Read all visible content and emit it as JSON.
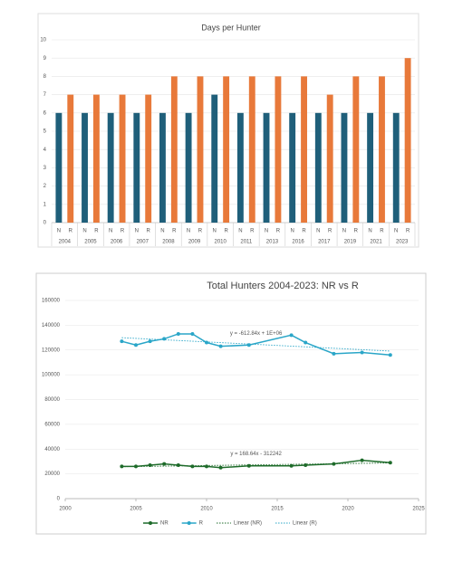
{
  "chart_data": [
    {
      "type": "bar",
      "title": "Days per Hunter",
      "categories": [
        "2004",
        "2005",
        "2006",
        "2007",
        "2008",
        "2009",
        "2010",
        "2011",
        "2013",
        "2016",
        "2017",
        "2019",
        "2021",
        "2023"
      ],
      "series": [
        {
          "name": "N",
          "color": "#1f5f7a",
          "values": [
            6,
            6,
            6,
            6,
            6,
            6,
            7,
            6,
            6,
            6,
            6,
            6,
            6,
            6
          ]
        },
        {
          "name": "R",
          "color": "#e8793a",
          "values": [
            7,
            7,
            7,
            7,
            8,
            8,
            8,
            8,
            8,
            8,
            7,
            8,
            8,
            9
          ]
        }
      ],
      "ylim": [
        0,
        10
      ],
      "yticks": [
        0,
        1,
        2,
        3,
        4,
        5,
        6,
        7,
        8,
        9,
        10
      ],
      "grid": true
    },
    {
      "type": "line",
      "title": "Total Hunters 2004-2023: NR vs R",
      "x": [
        2004,
        2005,
        2006,
        2007,
        2008,
        2009,
        2010,
        2011,
        2013,
        2016,
        2017,
        2019,
        2021,
        2023
      ],
      "series": [
        {
          "name": "NR",
          "color": "#1e6b2a",
          "values": [
            26000,
            26000,
            27000,
            28000,
            27000,
            26000,
            26000,
            25000,
            26500,
            26500,
            27000,
            28000,
            31000,
            29000
          ],
          "trendline": {
            "name": "Linear (NR)",
            "label": "y = 168.64x - 312242"
          }
        },
        {
          "name": "R",
          "color": "#2aa6c8",
          "values": [
            127000,
            124000,
            127000,
            129000,
            133000,
            133000,
            126000,
            123000,
            124000,
            132000,
            126000,
            117000,
            118000,
            116000
          ],
          "trendline": {
            "name": "Linear (R)",
            "label": "y = -612.84x + 1E+06"
          }
        }
      ],
      "xlim": [
        2000,
        2025
      ],
      "xticks": [
        2000,
        2005,
        2010,
        2015,
        2020,
        2025
      ],
      "ylim": [
        0,
        160000
      ],
      "yticks": [
        0,
        20000,
        40000,
        60000,
        80000,
        100000,
        120000,
        140000,
        160000
      ],
      "grid": true,
      "legend": "bottom"
    }
  ]
}
